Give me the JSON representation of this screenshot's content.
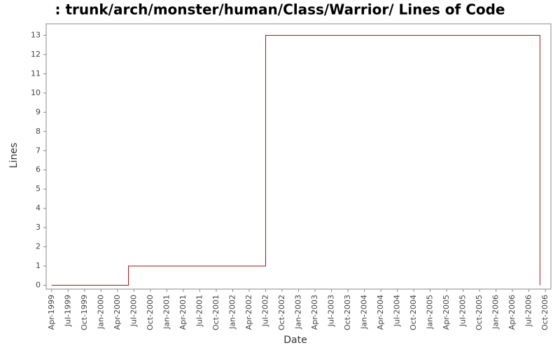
{
  "chart_data": {
    "type": "line",
    "step": true,
    "title": ": trunk/arch/monster/human/Class/Warrior/ Lines of Code",
    "x_label": "Date",
    "y_label": "Lines",
    "series": [
      {
        "name": "Lines",
        "color": "#b01010",
        "x": [
          "1999-04",
          "2000-06",
          "2002-07",
          "2006-09"
        ],
        "values": [
          0,
          1,
          13,
          0
        ]
      }
    ],
    "xlim": [
      "1999-03",
      "2006-11"
    ],
    "xticks": [
      {
        "value": "1999-04",
        "label": "Apr-1999"
      },
      {
        "value": "1999-07",
        "label": "Jul-1999"
      },
      {
        "value": "1999-10",
        "label": "Oct-1999"
      },
      {
        "value": "2000-01",
        "label": "Jan-2000"
      },
      {
        "value": "2000-04",
        "label": "Apr-2000"
      },
      {
        "value": "2000-07",
        "label": "Jul-2000"
      },
      {
        "value": "2000-10",
        "label": "Oct-2000"
      },
      {
        "value": "2001-01",
        "label": "Jan-2001"
      },
      {
        "value": "2001-04",
        "label": "Apr-2001"
      },
      {
        "value": "2001-07",
        "label": "Jul-2001"
      },
      {
        "value": "2001-10",
        "label": "Oct-2001"
      },
      {
        "value": "2002-01",
        "label": "Jan-2002"
      },
      {
        "value": "2002-04",
        "label": "Apr-2002"
      },
      {
        "value": "2002-07",
        "label": "Jul-2002"
      },
      {
        "value": "2002-10",
        "label": "Oct-2002"
      },
      {
        "value": "2003-01",
        "label": "Jan-2003"
      },
      {
        "value": "2003-04",
        "label": "Apr-2003"
      },
      {
        "value": "2003-07",
        "label": "Jul-2003"
      },
      {
        "value": "2003-10",
        "label": "Oct-2003"
      },
      {
        "value": "2004-01",
        "label": "Jan-2004"
      },
      {
        "value": "2004-04",
        "label": "Apr-2004"
      },
      {
        "value": "2004-07",
        "label": "Jul-2004"
      },
      {
        "value": "2004-10",
        "label": "Oct-2004"
      },
      {
        "value": "2005-01",
        "label": "Jan-2005"
      },
      {
        "value": "2005-04",
        "label": "Apr-2005"
      },
      {
        "value": "2005-07",
        "label": "Jul-2005"
      },
      {
        "value": "2005-10",
        "label": "Oct-2005"
      },
      {
        "value": "2006-01",
        "label": "Jan-2006"
      },
      {
        "value": "2006-04",
        "label": "Apr-2006"
      },
      {
        "value": "2006-07",
        "label": "Jul-2006"
      },
      {
        "value": "2006-10",
        "label": "Oct-2006"
      }
    ],
    "ylim": [
      -0.2,
      13.6
    ],
    "yticks": [
      0,
      1,
      2,
      3,
      4,
      5,
      6,
      7,
      8,
      9,
      10,
      11,
      12,
      13
    ],
    "grid": false
  }
}
